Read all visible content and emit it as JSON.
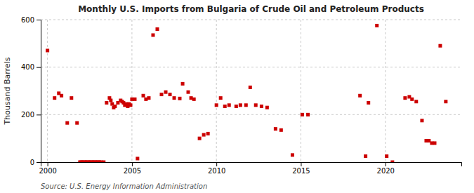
{
  "chart_data": {
    "type": "scatter",
    "title": "Monthly U.S. Imports from Bulgaria of Crude Oil and Petroleum Products",
    "ylabel": "Thousand Barrels",
    "source": "Source: U.S. Energy Information Administration",
    "color": "#cc0000",
    "marker": "square",
    "grid": true,
    "xlim": [
      1999.6,
      2024.5
    ],
    "xticks": [
      2000,
      2005,
      2010,
      2015,
      2020
    ],
    "ylim": [
      0,
      600
    ],
    "yticks": [
      0,
      200,
      400,
      600
    ],
    "x": [
      2000.0,
      2000.42,
      2000.67,
      2000.83,
      2001.17,
      2001.42,
      2001.75,
      2001.92,
      2002.0,
      2002.08,
      2002.17,
      2002.25,
      2002.33,
      2002.42,
      2002.5,
      2002.58,
      2002.67,
      2002.75,
      2002.83,
      2002.92,
      2003.0,
      2003.08,
      2003.17,
      2003.33,
      2003.5,
      2003.67,
      2003.75,
      2003.83,
      2003.92,
      2004.0,
      2004.17,
      2004.33,
      2004.42,
      2004.5,
      2004.58,
      2004.67,
      2004.75,
      2004.83,
      2004.92,
      2005.0,
      2005.17,
      2005.33,
      2005.67,
      2005.83,
      2006.0,
      2006.25,
      2006.5,
      2006.75,
      2007.0,
      2007.25,
      2007.5,
      2007.83,
      2008.0,
      2008.33,
      2008.5,
      2008.67,
      2009.0,
      2009.25,
      2009.5,
      2010.0,
      2010.25,
      2010.5,
      2010.75,
      2011.17,
      2011.42,
      2011.75,
      2012.0,
      2012.33,
      2012.67,
      2013.0,
      2013.5,
      2013.83,
      2014.5,
      2015.08,
      2015.42,
      2018.5,
      2018.83,
      2019.0,
      2019.5,
      2020.08,
      2020.42,
      2021.17,
      2021.42,
      2021.58,
      2021.83,
      2022.17,
      2022.42,
      2022.58,
      2022.75,
      2022.92,
      2023.25,
      2023.58
    ],
    "values": [
      470,
      270,
      290,
      280,
      165,
      270,
      165,
      0,
      0,
      0,
      0,
      0,
      0,
      0,
      0,
      0,
      0,
      0,
      0,
      0,
      0,
      0,
      0,
      0,
      250,
      270,
      260,
      245,
      230,
      235,
      250,
      260,
      255,
      250,
      240,
      245,
      235,
      245,
      240,
      265,
      265,
      15,
      280,
      265,
      270,
      535,
      560,
      285,
      295,
      285,
      270,
      268,
      330,
      295,
      270,
      265,
      100,
      115,
      120,
      240,
      270,
      235,
      240,
      235,
      240,
      240,
      315,
      240,
      235,
      230,
      140,
      135,
      30,
      200,
      200,
      280,
      25,
      250,
      575,
      25,
      0,
      270,
      275,
      265,
      255,
      175,
      90,
      90,
      80,
      80,
      490,
      255
    ]
  }
}
